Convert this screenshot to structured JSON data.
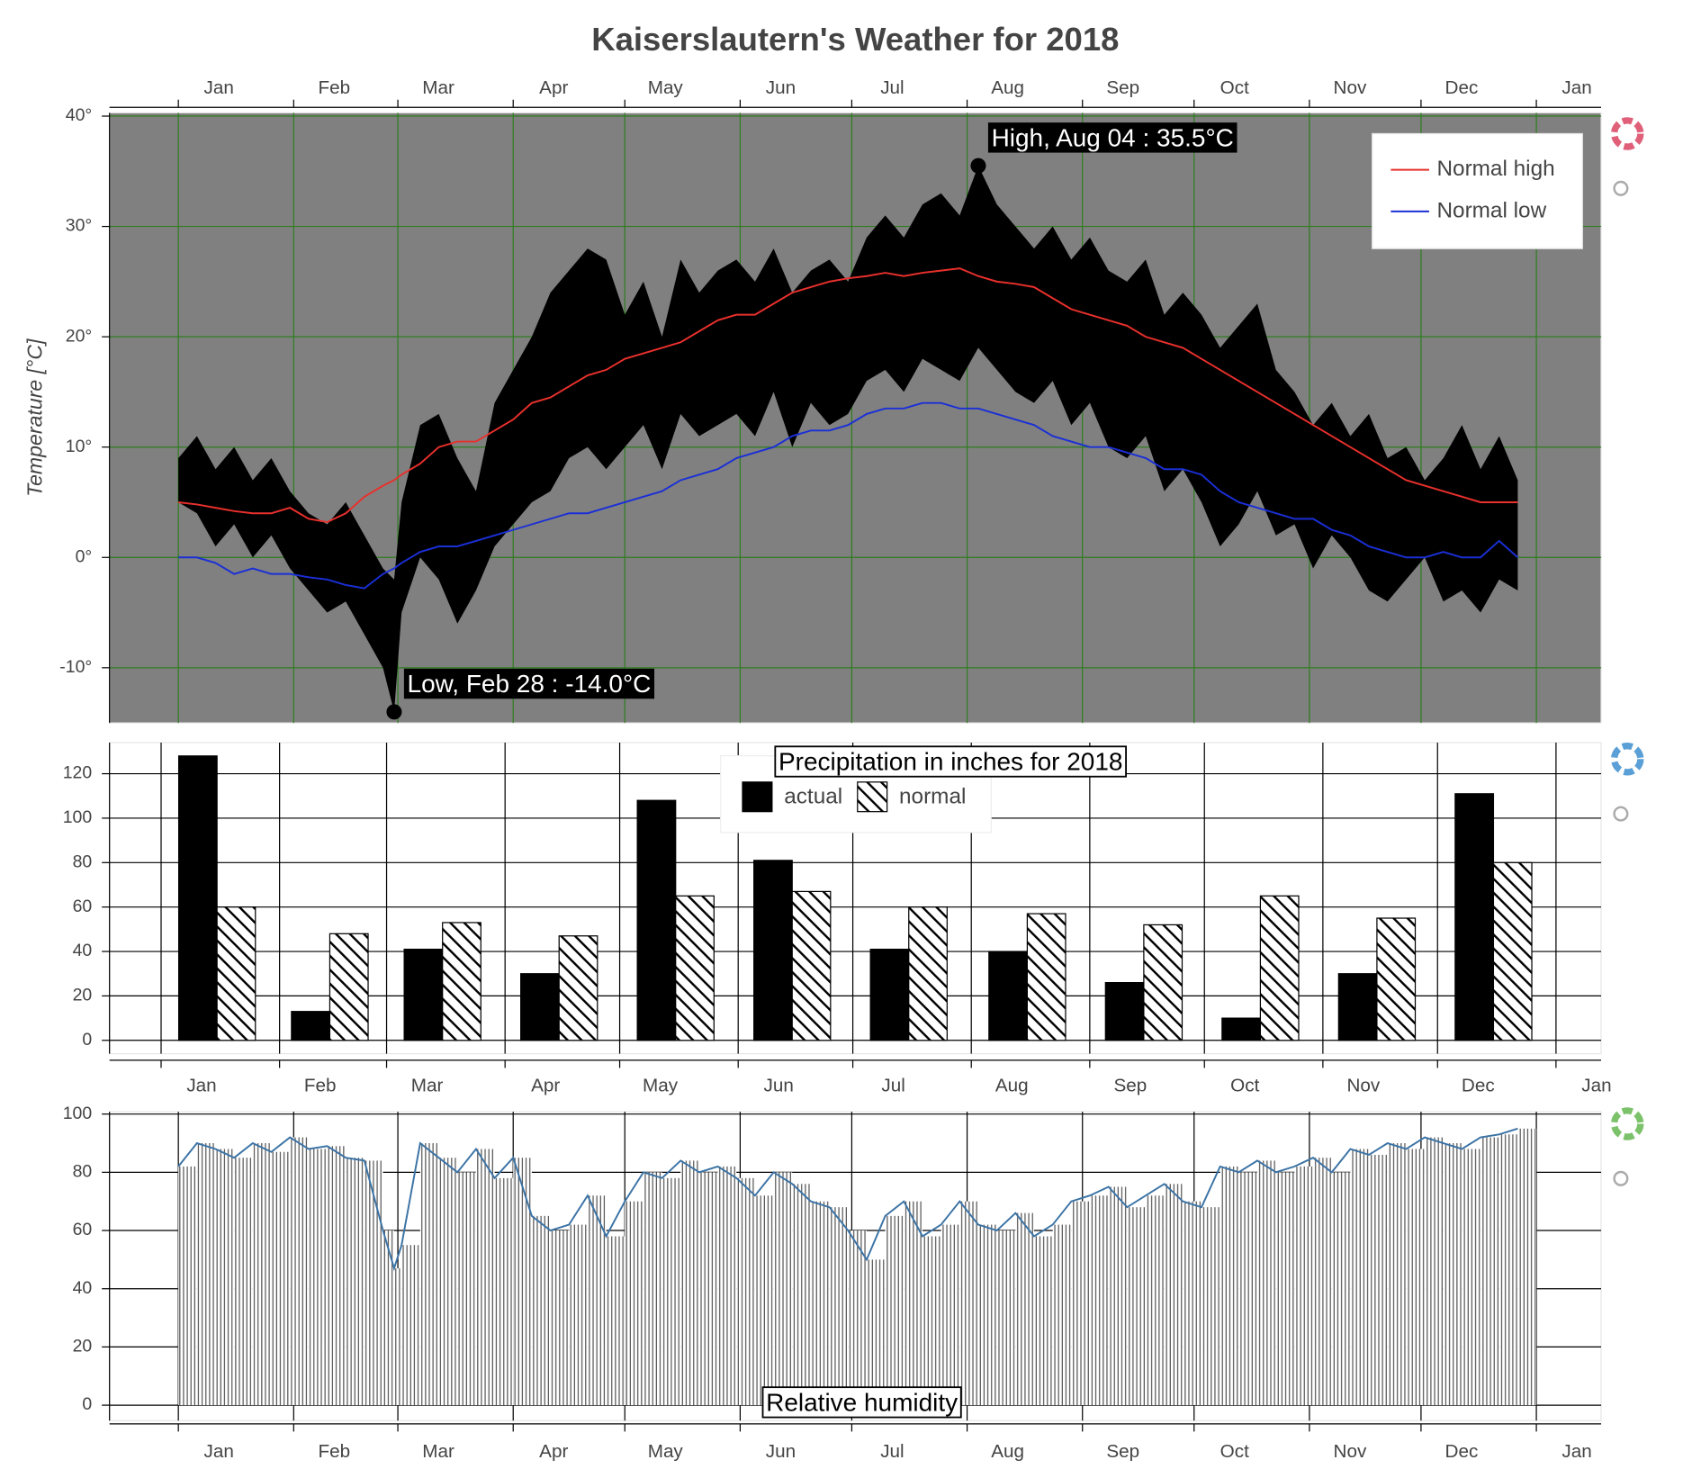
{
  "chart_data": [
    {
      "type": "line",
      "title": "Kaiserslautern's Weather for 2018",
      "ylabel": "Temperature [°C]",
      "x": [
        0,
        5,
        10,
        15,
        20,
        25,
        30,
        35,
        40,
        45,
        50,
        55,
        58,
        60,
        65,
        70,
        75,
        80,
        85,
        90,
        95,
        100,
        105,
        110,
        115,
        120,
        125,
        130,
        135,
        140,
        145,
        150,
        155,
        160,
        165,
        170,
        175,
        180,
        185,
        190,
        195,
        200,
        205,
        210,
        215,
        220,
        225,
        230,
        235,
        240,
        245,
        250,
        255,
        260,
        265,
        270,
        275,
        280,
        285,
        290,
        295,
        300,
        305,
        310,
        315,
        320,
        325,
        330,
        335,
        340,
        345,
        350,
        355,
        360
      ],
      "range": {
        "color": "#000000",
        "high": [
          9,
          11,
          8,
          10,
          7,
          9,
          6,
          4,
          3,
          5,
          2,
          -1,
          -2,
          5,
          12,
          13,
          9,
          6,
          14,
          17,
          20,
          24,
          26,
          28,
          27,
          22,
          25,
          20,
          27,
          24,
          26,
          27,
          25,
          28,
          24,
          26,
          27,
          25,
          29,
          31,
          29,
          32,
          33,
          31,
          35.5,
          32,
          30,
          28,
          30,
          27,
          29,
          26,
          25,
          27,
          22,
          24,
          22,
          19,
          21,
          23,
          17,
          15,
          12,
          14,
          11,
          13,
          9,
          10,
          7,
          9,
          12,
          8,
          11,
          7
        ],
        "low": [
          5,
          4,
          1,
          3,
          0,
          2,
          -1,
          -3,
          -5,
          -4,
          -7,
          -10,
          -14,
          -5,
          0,
          -2,
          -6,
          -3,
          1,
          3,
          5,
          6,
          9,
          10,
          8,
          10,
          12,
          8,
          13,
          11,
          12,
          13,
          11,
          15,
          10,
          14,
          12,
          13,
          16,
          17,
          15,
          18,
          17,
          16,
          19,
          17,
          15,
          14,
          16,
          12,
          14,
          10,
          9,
          11,
          6,
          8,
          5,
          1,
          3,
          6,
          2,
          3,
          -1,
          2,
          0,
          -3,
          -4,
          -2,
          0,
          -4,
          -3,
          -5,
          -2,
          -3
        ]
      },
      "series": [
        {
          "name": "Normal high",
          "color": "#e8302c",
          "values": [
            5,
            4.8,
            4.5,
            4.2,
            4,
            4,
            4.5,
            3.5,
            3.2,
            4,
            5.5,
            6.5,
            7,
            7.5,
            8.5,
            10,
            10.5,
            10.5,
            11.5,
            12.5,
            14,
            14.5,
            15.5,
            16.5,
            17,
            18,
            18.5,
            19,
            19.5,
            20.5,
            21.5,
            22,
            22,
            23,
            24,
            24.5,
            25,
            25.3,
            25.5,
            25.8,
            25.5,
            25.8,
            26,
            26.2,
            25.5,
            25,
            24.8,
            24.5,
            23.5,
            22.5,
            22,
            21.5,
            21,
            20,
            19.5,
            19,
            18,
            17,
            16,
            15,
            14,
            13,
            12,
            11,
            10,
            9,
            8,
            7,
            6.5,
            6,
            5.5,
            5,
            5,
            5
          ]
        },
        {
          "name": "Normal low",
          "color": "#1a2fd6",
          "values": [
            0,
            0,
            -0.5,
            -1.5,
            -1,
            -1.5,
            -1.5,
            -1.8,
            -2,
            -2.5,
            -2.8,
            -1.5,
            -1,
            -0.5,
            0.5,
            1,
            1,
            1.5,
            2,
            2.5,
            3,
            3.5,
            4,
            4,
            4.5,
            5,
            5.5,
            6,
            7,
            7.5,
            8,
            9,
            9.5,
            10,
            11,
            11.5,
            11.5,
            12,
            13,
            13.5,
            13.5,
            14,
            14,
            13.5,
            13.5,
            13,
            12.5,
            12,
            11,
            10.5,
            10,
            10,
            9.5,
            9,
            8,
            8,
            7.5,
            6,
            5,
            4.5,
            4,
            3.5,
            3.5,
            2.5,
            2,
            1,
            0.5,
            0,
            0,
            0.5,
            0,
            0,
            1.5,
            0
          ]
        }
      ],
      "annotations": [
        {
          "text": "High, Aug 04 : 35.5°C",
          "x": 215,
          "y": 35.5
        },
        {
          "text": "Low, Feb 28 : -14.0°C",
          "x": 58,
          "y": -14
        }
      ],
      "xlim": [
        -18.5,
        382.4
      ],
      "ylim": [
        -15,
        40.3
      ],
      "xticks": [
        {
          "value": 0,
          "label": "Jan"
        },
        {
          "value": 31,
          "label": "Feb"
        },
        {
          "value": 59,
          "label": "Mar"
        },
        {
          "value": 90,
          "label": "Apr"
        },
        {
          "value": 120,
          "label": "May"
        },
        {
          "value": 151,
          "label": "Jun"
        },
        {
          "value": 181,
          "label": "Jul"
        },
        {
          "value": 212,
          "label": "Aug"
        },
        {
          "value": 243,
          "label": "Sep"
        },
        {
          "value": 273,
          "label": "Oct"
        },
        {
          "value": 304,
          "label": "Nov"
        },
        {
          "value": 334,
          "label": "Dec"
        },
        {
          "value": 365,
          "label": "Jan"
        }
      ],
      "yticks": [
        {
          "value": -10,
          "label": "-10°"
        },
        {
          "value": 0,
          "label": "0°"
        },
        {
          "value": 10,
          "label": "10°"
        },
        {
          "value": 20,
          "label": "20°"
        },
        {
          "value": 30,
          "label": "30°"
        },
        {
          "value": 40,
          "label": "40°"
        }
      ],
      "grid": true,
      "grid_color": "#2e7d1e",
      "background": "#808080",
      "legend": "top-right"
    },
    {
      "type": "bar",
      "title": "Precipitation in inches for 2018",
      "series": [
        {
          "name": "actual",
          "color": "#000000",
          "values": [
            128,
            13,
            41,
            30,
            108,
            81,
            41,
            40,
            26,
            10,
            30,
            111
          ]
        },
        {
          "name": "normal",
          "color": "#000000",
          "pattern": "hatch",
          "values": [
            60,
            48,
            53,
            47,
            65,
            67,
            60,
            57,
            52,
            65,
            55,
            80
          ]
        }
      ],
      "xlim": [
        -13.5,
        376.8
      ],
      "ylim": [
        -6,
        134
      ],
      "xticks": [
        {
          "value": 0,
          "label": "Jan"
        },
        {
          "value": 31,
          "label": "Feb"
        },
        {
          "value": 59,
          "label": "Mar"
        },
        {
          "value": 90,
          "label": "Apr"
        },
        {
          "value": 120,
          "label": "May"
        },
        {
          "value": 151,
          "label": "Jun"
        },
        {
          "value": 181,
          "label": "Jul"
        },
        {
          "value": 212,
          "label": "Aug"
        },
        {
          "value": 243,
          "label": "Sep"
        },
        {
          "value": 273,
          "label": "Oct"
        },
        {
          "value": 304,
          "label": "Nov"
        },
        {
          "value": 334,
          "label": "Dec"
        },
        {
          "value": 365,
          "label": "Jan"
        }
      ],
      "yticks": [
        0,
        20,
        40,
        60,
        80,
        100,
        120
      ],
      "grid": true,
      "grid_color": "#000000",
      "background": "#ffffff",
      "legend": "top"
    },
    {
      "type": "bar",
      "title": "Relative humidity",
      "x": [
        0,
        5,
        10,
        15,
        20,
        25,
        30,
        35,
        40,
        45,
        50,
        55,
        58,
        60,
        65,
        70,
        75,
        80,
        85,
        90,
        95,
        100,
        105,
        110,
        115,
        120,
        125,
        130,
        135,
        140,
        145,
        150,
        155,
        160,
        165,
        170,
        175,
        180,
        185,
        190,
        195,
        200,
        205,
        210,
        215,
        220,
        225,
        230,
        235,
        240,
        245,
        250,
        255,
        260,
        265,
        270,
        275,
        280,
        285,
        290,
        295,
        300,
        305,
        310,
        315,
        320,
        325,
        330,
        335,
        340,
        345,
        350,
        355,
        360
      ],
      "values": [
        82,
        90,
        88,
        85,
        90,
        87,
        92,
        88,
        89,
        85,
        84,
        60,
        47,
        55,
        90,
        85,
        80,
        88,
        78,
        85,
        65,
        60,
        62,
        72,
        58,
        70,
        80,
        78,
        84,
        80,
        82,
        78,
        72,
        80,
        76,
        70,
        68,
        60,
        50,
        65,
        70,
        58,
        62,
        70,
        62,
        60,
        66,
        58,
        62,
        70,
        72,
        75,
        68,
        72,
        76,
        70,
        68,
        82,
        80,
        84,
        80,
        82,
        85,
        80,
        88,
        86,
        90,
        88,
        92,
        90,
        88,
        92,
        93,
        95
      ],
      "color": "#3b73a5",
      "bar_color": "#555555",
      "xlim": [
        -18.5,
        382.4
      ],
      "ylim": [
        -5.3,
        100.8
      ],
      "xticks": [
        {
          "value": 0,
          "label": "Jan"
        },
        {
          "value": 31,
          "label": "Feb"
        },
        {
          "value": 59,
          "label": "Mar"
        },
        {
          "value": 90,
          "label": "Apr"
        },
        {
          "value": 120,
          "label": "May"
        },
        {
          "value": 151,
          "label": "Jun"
        },
        {
          "value": 181,
          "label": "Jul"
        },
        {
          "value": 212,
          "label": "Aug"
        },
        {
          "value": 243,
          "label": "Sep"
        },
        {
          "value": 273,
          "label": "Oct"
        },
        {
          "value": 304,
          "label": "Nov"
        },
        {
          "value": 334,
          "label": "Dec"
        },
        {
          "value": 365,
          "label": "Jan"
        }
      ],
      "yticks": [
        0,
        20,
        40,
        60,
        80,
        100
      ],
      "grid": true,
      "grid_color": "#000000",
      "background": "#ffffff"
    }
  ]
}
